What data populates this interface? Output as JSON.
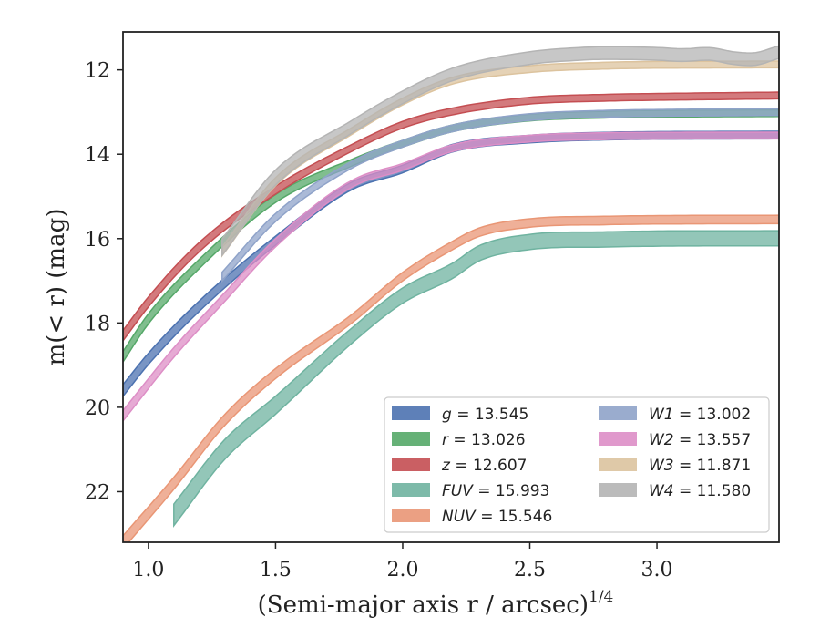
{
  "chart_data": {
    "type": "line",
    "xlabel": "(Semi-major axis r / arcsec)",
    "xlabel_sup": "1/4",
    "ylabel": "m(< r) (mag)",
    "xlim": [
      0.9,
      3.48
    ],
    "ylim": [
      23.2,
      11.1
    ],
    "y_inverted": true,
    "xticks": [
      1.0,
      1.5,
      2.0,
      2.5,
      3.0
    ],
    "yticks": [
      12,
      14,
      16,
      18,
      20,
      22
    ],
    "xtick_labels": [
      "1.0",
      "1.5",
      "2.0",
      "2.5",
      "3.0"
    ],
    "ytick_labels": [
      "12",
      "14",
      "16",
      "18",
      "20",
      "22"
    ],
    "legend_position": "lower-right",
    "grid": false,
    "series": [
      {
        "name": "g",
        "value": "13.545",
        "color": "#4c72b0",
        "band": 0.09,
        "x_start": 0.9,
        "x_end": 3.48,
        "points": [
          [
            0.9,
            19.6
          ],
          [
            1.0,
            18.85
          ],
          [
            1.2,
            17.6
          ],
          [
            1.5,
            16.05
          ],
          [
            1.8,
            14.75
          ],
          [
            2.0,
            14.35
          ],
          [
            2.2,
            13.85
          ],
          [
            2.5,
            13.64
          ],
          [
            2.8,
            13.57
          ],
          [
            3.0,
            13.555
          ],
          [
            3.48,
            13.545
          ]
        ]
      },
      {
        "name": "r",
        "value": "13.026",
        "color": "#55a868",
        "band": 0.08,
        "x_start": 0.9,
        "x_end": 3.48,
        "points": [
          [
            0.9,
            18.8
          ],
          [
            1.0,
            17.9
          ],
          [
            1.2,
            16.6
          ],
          [
            1.5,
            15.05
          ],
          [
            1.8,
            14.2
          ],
          [
            2.0,
            13.75
          ],
          [
            2.2,
            13.38
          ],
          [
            2.5,
            13.13
          ],
          [
            2.8,
            13.06
          ],
          [
            3.0,
            13.04
          ],
          [
            3.48,
            13.026
          ]
        ]
      },
      {
        "name": "z",
        "value": "12.607",
        "color": "#c44e52",
        "band": 0.08,
        "x_start": 0.9,
        "x_end": 3.48,
        "points": [
          [
            0.9,
            18.3
          ],
          [
            1.0,
            17.5
          ],
          [
            1.2,
            16.2
          ],
          [
            1.5,
            14.85
          ],
          [
            1.8,
            13.85
          ],
          [
            2.0,
            13.3
          ],
          [
            2.2,
            12.98
          ],
          [
            2.5,
            12.73
          ],
          [
            2.8,
            12.66
          ],
          [
            3.0,
            12.64
          ],
          [
            3.48,
            12.607
          ]
        ]
      },
      {
        "name": "FUV",
        "value": "15.993",
        "color": "#6fb3a0",
        "band": 0.18,
        "x_start": 1.1,
        "x_end": 3.48,
        "points": [
          [
            1.1,
            22.55
          ],
          [
            1.3,
            21.0
          ],
          [
            1.5,
            19.95
          ],
          [
            1.8,
            18.3
          ],
          [
            2.0,
            17.35
          ],
          [
            2.2,
            16.75
          ],
          [
            2.3,
            16.35
          ],
          [
            2.5,
            16.08
          ],
          [
            2.8,
            16.02
          ],
          [
            3.0,
            16.0
          ],
          [
            3.48,
            15.993
          ]
        ]
      },
      {
        "name": "NUV",
        "value": "15.546",
        "color": "#e99675",
        "band": 0.1,
        "x_start": 0.9,
        "x_end": 3.48,
        "points": [
          [
            0.9,
            23.2
          ],
          [
            1.1,
            21.8
          ],
          [
            1.3,
            20.3
          ],
          [
            1.5,
            19.2
          ],
          [
            1.8,
            17.9
          ],
          [
            2.0,
            16.9
          ],
          [
            2.2,
            16.15
          ],
          [
            2.3,
            15.85
          ],
          [
            2.5,
            15.63
          ],
          [
            2.8,
            15.57
          ],
          [
            3.0,
            15.555
          ],
          [
            3.48,
            15.546
          ]
        ]
      },
      {
        "name": "W1",
        "value": "13.002",
        "color": "#8fa3c9",
        "band": 0.08,
        "x_start": 1.29,
        "x_end": 3.48,
        "points": [
          [
            1.29,
            16.9
          ],
          [
            1.5,
            15.5
          ],
          [
            1.8,
            14.25
          ],
          [
            2.0,
            13.75
          ],
          [
            2.2,
            13.38
          ],
          [
            2.5,
            13.12
          ],
          [
            2.8,
            13.04
          ],
          [
            3.0,
            13.02
          ],
          [
            3.48,
            13.002
          ]
        ]
      },
      {
        "name": "W2",
        "value": "13.557",
        "color": "#dd8ec6",
        "band": 0.08,
        "x_start": 0.9,
        "x_end": 3.48,
        "points": [
          [
            0.9,
            20.2
          ],
          [
            1.1,
            18.7
          ],
          [
            1.29,
            17.45
          ],
          [
            1.5,
            16.1
          ],
          [
            1.8,
            14.7
          ],
          [
            2.0,
            14.3
          ],
          [
            2.2,
            13.85
          ],
          [
            2.5,
            13.63
          ],
          [
            2.8,
            13.57
          ],
          [
            3.0,
            13.56
          ],
          [
            3.48,
            13.557
          ]
        ]
      },
      {
        "name": "W3",
        "value": "11.871",
        "color": "#dcc39e",
        "band": 0.08,
        "x_start": 1.29,
        "x_end": 3.48,
        "points": [
          [
            1.29,
            16.3
          ],
          [
            1.5,
            14.65
          ],
          [
            1.8,
            13.45
          ],
          [
            2.0,
            12.75
          ],
          [
            2.2,
            12.25
          ],
          [
            2.5,
            11.98
          ],
          [
            2.8,
            11.9
          ],
          [
            3.0,
            11.88
          ],
          [
            3.2,
            11.875
          ],
          [
            3.48,
            11.871
          ]
        ]
      },
      {
        "name": "W4",
        "value": "11.580",
        "color": "#b4b4b4",
        "band": 0.15,
        "x_start": 1.29,
        "x_end": 3.48,
        "points": [
          [
            1.29,
            16.2
          ],
          [
            1.5,
            14.55
          ],
          [
            1.8,
            13.35
          ],
          [
            2.0,
            12.65
          ],
          [
            2.2,
            12.1
          ],
          [
            2.5,
            11.72
          ],
          [
            2.7,
            11.62
          ],
          [
            2.8,
            11.6
          ],
          [
            3.0,
            11.62
          ],
          [
            3.1,
            11.65
          ],
          [
            3.2,
            11.62
          ],
          [
            3.3,
            11.72
          ],
          [
            3.37,
            11.75
          ],
          [
            3.48,
            11.58
          ]
        ]
      }
    ]
  }
}
